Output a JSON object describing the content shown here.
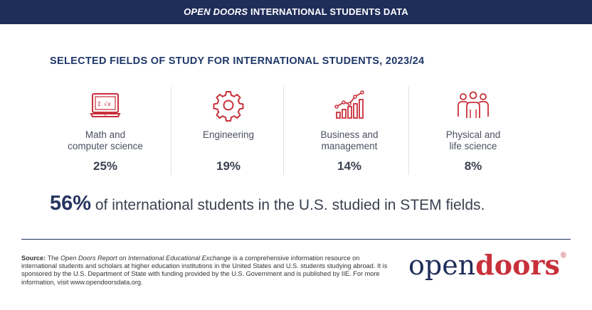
{
  "header": {
    "italic_part": "OPEN DOORS",
    "rest": " INTERNATIONAL STUDENTS DATA"
  },
  "subtitle": "SELECTED FIELDS OF STUDY FOR INTERNATIONAL STUDENTS, 2023/24",
  "fields": [
    {
      "label_line1": "Math and",
      "label_line2": "computer science",
      "percent": "25%",
      "icon": "computer-math-icon"
    },
    {
      "label_line1": "Engineering",
      "label_line2": "",
      "percent": "19%",
      "icon": "gear-icon"
    },
    {
      "label_line1": "Business and",
      "label_line2": "management",
      "percent": "14%",
      "icon": "bar-chart-growth-icon"
    },
    {
      "label_line1": "Physical and",
      "label_line2": "life science",
      "percent": "8%",
      "icon": "people-group-icon"
    }
  ],
  "stem": {
    "value": "56%",
    "text": " of international students in the U.S. studied in STEM fields."
  },
  "source": {
    "label": "Source:",
    "pre": " The ",
    "report": "Open Doors Report on International Educational Exchange",
    "text": " is a comprehensive information resource on international students and scholars at higher education institutions in the United States and U.S. students studying abroad. It is sponsored by the U.S. Department of State with funding provided by the U.S. Government and is published by IIE. For more information, visit www.opendoorsdata.org."
  },
  "logo": {
    "open": "open",
    "doors": "doors",
    "mark": "®"
  },
  "colors": {
    "navy": "#1f2d5a",
    "red": "#c8303a",
    "text": "#3a4250"
  }
}
